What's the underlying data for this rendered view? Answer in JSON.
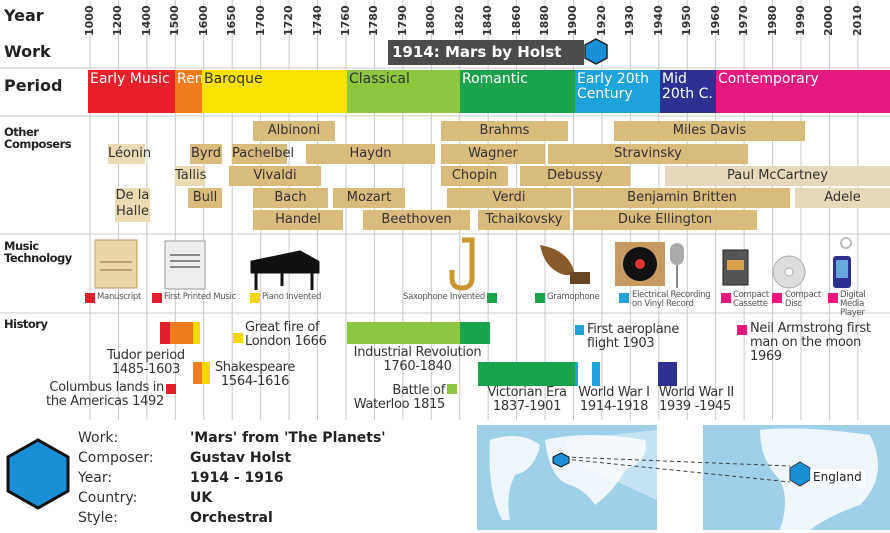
{
  "row_labels": [
    "Year",
    "Work",
    "Period",
    "Other Composers",
    "Music Technology",
    "History"
  ],
  "years": [
    1000,
    1200,
    1400,
    1500,
    1600,
    1650,
    1700,
    1720,
    1740,
    1760,
    1780,
    1790,
    1800,
    1820,
    1840,
    1860,
    1880,
    1900,
    1920,
    1930,
    1940,
    1950,
    1960,
    1970,
    1980,
    1990,
    2000,
    2010
  ],
  "work": "1914: Mars by Holst",
  "periods": [
    "Early Music",
    "Ren.",
    "Baroque",
    "Classical",
    "Romantic",
    "Early 20th Century",
    "Mid 20th C.",
    "Contemporary"
  ],
  "composers": [
    "Albinoni",
    "Brahms",
    "Miles Davis",
    "Léonin",
    "Byrd",
    "Pachelbel",
    "Haydn",
    "Wagner",
    "Stravinsky",
    "Tallis",
    "Vivaldi",
    "Chopin",
    "Debussy",
    "Paul McCartney",
    "De la Halle",
    "Bull",
    "Bach",
    "Mozart",
    "Verdi",
    "Benjamin Britten",
    "Adele",
    "Handel",
    "Beethoven",
    "Tchaikovsky",
    "Duke Ellington"
  ],
  "technology": [
    "Manuscript",
    "First Printed Music",
    "Piano Invented",
    "Saxophone Invented",
    "Gramophone",
    "Electrical Recording on Vinyl Record",
    "Compact Cassette",
    "Compact Disc",
    "Digital Media Player"
  ],
  "history": [
    "Tudor period 1485-1603",
    "Columbus lands in the Americas 1492",
    "Shakespeare 1564-1616",
    "Great fire of London 1666",
    "Industrial Revolution 1760-1840",
    "Battle of Waterloo 1815",
    "Victorian Era 1837-1901",
    "First aeroplane flight 1903",
    "World War I 1914-1918",
    "World War II 1939 -1945",
    "Neil Armstrong first man on the moon 1969"
  ],
  "details": [
    {
      "label": "Work:",
      "value": "'Mars' from 'The Planets'"
    },
    {
      "label": "Composer:",
      "value": "Gustav Holst"
    },
    {
      "label": "Year:",
      "value": "1914 - 1916"
    },
    {
      "label": "Country:",
      "value": "UK"
    },
    {
      "label": "Style:",
      "value": "Orchestral"
    }
  ],
  "map_label": "England"
}
